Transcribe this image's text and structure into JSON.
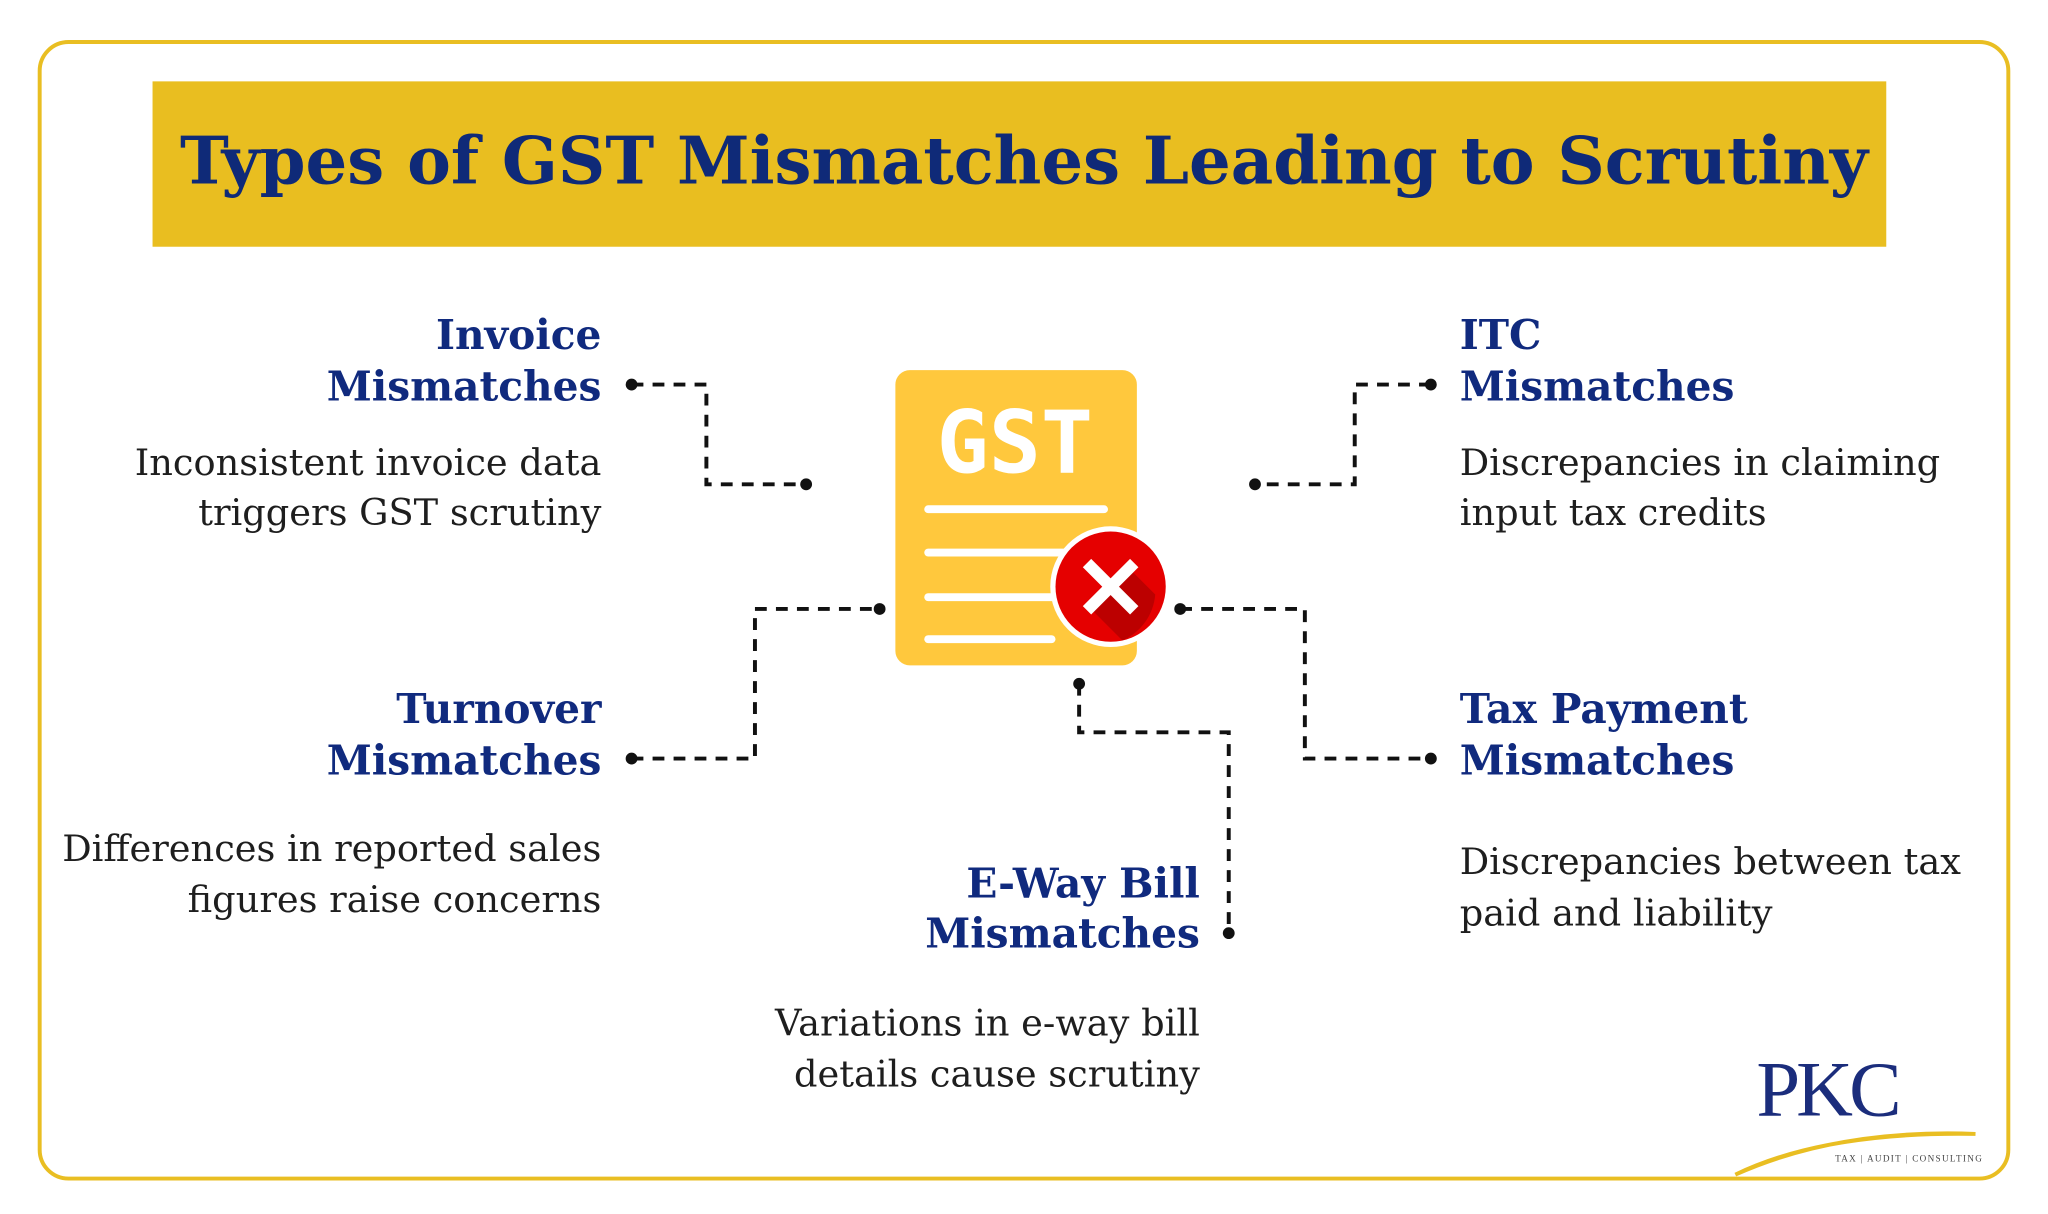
{
  "title": "Types of GST Mismatches Leading to Scrutiny",
  "colors": {
    "border": "#E9BE22",
    "banner": "#E9BE20",
    "heading": "#102A7E",
    "document": "#FFC83D",
    "error": "#E50000"
  },
  "center_icon": {
    "name": "gst-document-error-icon",
    "label": "GST"
  },
  "items": [
    {
      "heading": [
        "Invoice",
        "Mismatches"
      ],
      "description": [
        "Inconsistent invoice data",
        "triggers GST scrutiny"
      ]
    },
    {
      "heading": [
        "ITC",
        "Mismatches"
      ],
      "description": [
        "Discrepancies in claiming",
        "input tax credits"
      ]
    },
    {
      "heading": [
        "Turnover",
        "Mismatches"
      ],
      "description": [
        "Differences in reported sales",
        "figures raise concerns"
      ]
    },
    {
      "heading": [
        "Tax Payment",
        "Mismatches"
      ],
      "description": [
        "Discrepancies between tax",
        "paid and liability"
      ]
    },
    {
      "heading": [
        "E-Way Bill",
        "Mismatches"
      ],
      "description": [
        "Variations in e-way bill",
        "details cause scrutiny"
      ]
    }
  ],
  "logo": {
    "name": "PKC",
    "tagline": "TAX | AUDIT | CONSULTING"
  }
}
